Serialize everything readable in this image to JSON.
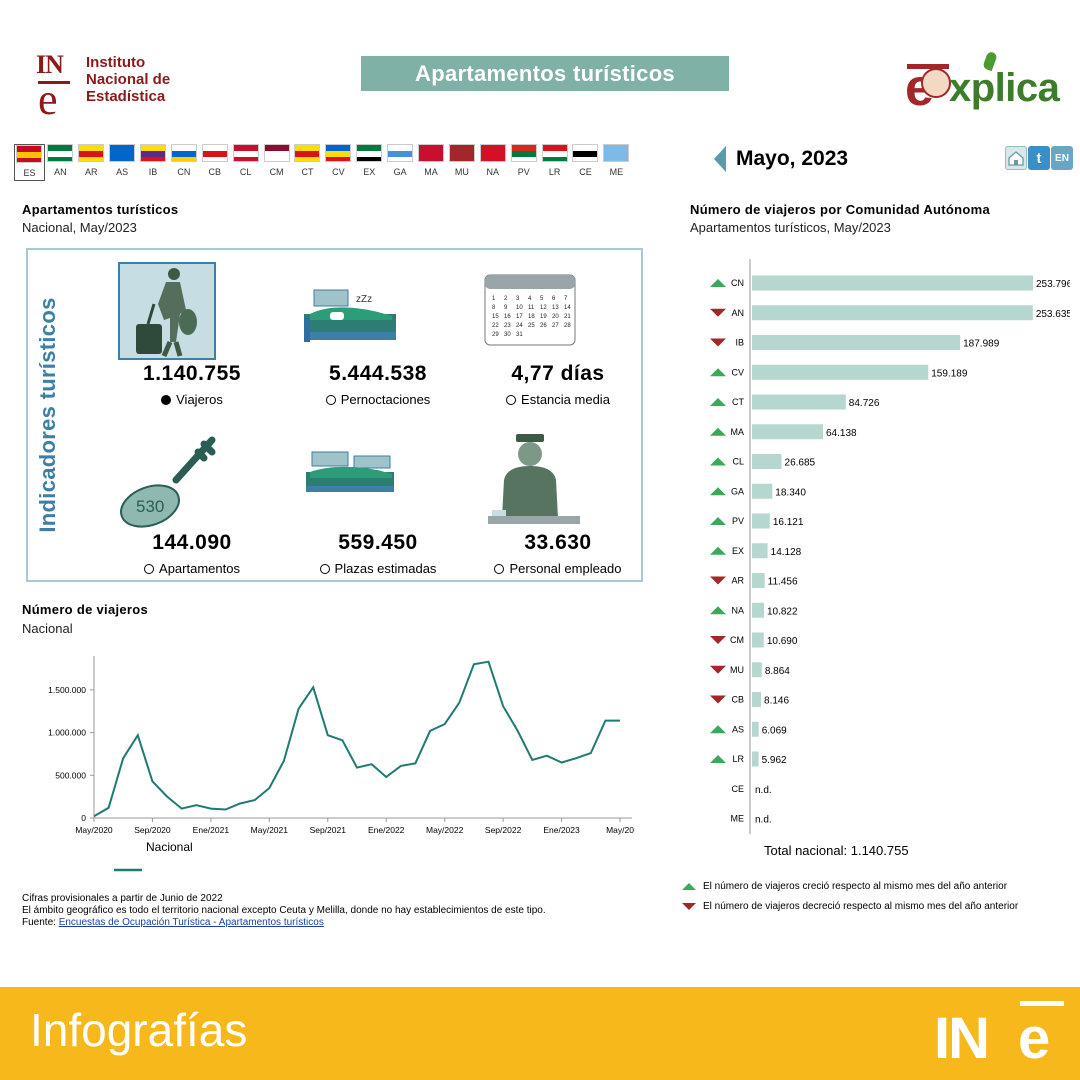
{
  "header": {
    "ine_logo_mark": "INe",
    "ine_name": [
      "Instituto",
      "Nacional de",
      "Estadística"
    ],
    "title": "Apartamentos turísticos",
    "explica_logo": "explica"
  },
  "flags": {
    "selected": "ES",
    "items": [
      {
        "code": "ES",
        "colors": [
          "#c60b1e",
          "#ffc400",
          "#c60b1e"
        ]
      },
      {
        "code": "AN",
        "colors": [
          "#007a3d",
          "#ffffff",
          "#007a3d"
        ]
      },
      {
        "code": "AR",
        "colors": [
          "#fcdd09",
          "#da121a",
          "#fcdd09"
        ]
      },
      {
        "code": "AS",
        "colors": [
          "#0066cc",
          "#0066cc",
          "#0066cc"
        ]
      },
      {
        "code": "IB",
        "colors": [
          "#fcdd09",
          "#5b2a86",
          "#da121a"
        ]
      },
      {
        "code": "CN",
        "colors": [
          "#ffffff",
          "#0066cc",
          "#ffcc00"
        ]
      },
      {
        "code": "CB",
        "colors": [
          "#ffffff",
          "#da121a",
          "#ffffff"
        ]
      },
      {
        "code": "CL",
        "colors": [
          "#c8102e",
          "#ffffff",
          "#c8102e"
        ]
      },
      {
        "code": "CM",
        "colors": [
          "#8b0d30",
          "#ffffff",
          "#ffffff"
        ]
      },
      {
        "code": "CT",
        "colors": [
          "#fcdd09",
          "#da121a",
          "#fcdd09"
        ]
      },
      {
        "code": "CV",
        "colors": [
          "#0066cc",
          "#fcdd09",
          "#da121a"
        ]
      },
      {
        "code": "EX",
        "colors": [
          "#007a3d",
          "#ffffff",
          "#000000"
        ]
      },
      {
        "code": "GA",
        "colors": [
          "#ffffff",
          "#4a90d9",
          "#ffffff"
        ]
      },
      {
        "code": "MA",
        "colors": [
          "#c8102e",
          "#c8102e",
          "#c8102e"
        ]
      },
      {
        "code": "MU",
        "colors": [
          "#a3262a",
          "#a3262a",
          "#a3262a"
        ]
      },
      {
        "code": "NA",
        "colors": [
          "#d50f25",
          "#d50f25",
          "#d50f25"
        ]
      },
      {
        "code": "PV",
        "colors": [
          "#d52b1e",
          "#007a3d",
          "#ffffff"
        ]
      },
      {
        "code": "LR",
        "colors": [
          "#da121a",
          "#ffffff",
          "#007a3d"
        ]
      },
      {
        "code": "CE",
        "colors": [
          "#ffffff",
          "#000000",
          "#ffffff"
        ]
      },
      {
        "code": "ME",
        "colors": [
          "#7fb9e6",
          "#7fb9e6",
          "#7fb9e6"
        ]
      }
    ]
  },
  "date_selector": {
    "label": "Mayo, 2023"
  },
  "toolbar": {
    "en_label": "EN",
    "twitter_glyph": "t"
  },
  "indicators_section": {
    "title": "Apartamentos turísticos",
    "subtitle": "Nacional, May/2023",
    "vertical_label": "Indicadores turísticos",
    "items": [
      {
        "value": "1.140.755",
        "label": "Viajeros",
        "selected": true
      },
      {
        "value": "5.444.538",
        "label": "Pernoctaciones",
        "selected": false
      },
      {
        "value": "4,77 días",
        "label": "Estancia media",
        "selected": false
      },
      {
        "value": "144.090",
        "label": "Apartamentos",
        "selected": false
      },
      {
        "value": "559.450",
        "label": "Plazas estimadas",
        "selected": false
      },
      {
        "value": "33.630",
        "label": "Personal empleado",
        "selected": false
      }
    ],
    "key_tag": "530",
    "calendar_days": [
      "1",
      "2",
      "3",
      "4",
      "5",
      "6",
      "7",
      "8",
      "9",
      "10",
      "11",
      "12",
      "13",
      "14",
      "15",
      "16",
      "17",
      "18",
      "19",
      "20",
      "21",
      "22",
      "23",
      "24",
      "25",
      "26",
      "27",
      "28",
      "29",
      "30",
      "31"
    ]
  },
  "line_section": {
    "title": "Número de viajeros",
    "subtitle": "Nacional"
  },
  "bar_section": {
    "title": "Número de viajeros por Comunidad Autónoma",
    "subtitle": "Apartamentos turísticos, May/2023",
    "total_label": "Total nacional: 1.140.755"
  },
  "legend": {
    "up": "El número de viajeros creció respecto al mismo mes del año anterior",
    "down": "El número de viajeros decreció respecto al mismo mes del año anterior",
    "up_color": "#3aa95c",
    "down_color": "#a3262a"
  },
  "notes": {
    "line1": "Cifras provisionales a partir de Junio de 2022",
    "line2": "El ámbito geográfico es todo el territorio nacional excepto Ceuta y Melilla, donde no hay establecimientos de este tipo.",
    "source_label": "Fuente:",
    "source_link": "Encuestas de Ocupación Turística - Apartamentos turísticos"
  },
  "footer": {
    "label": "Infografías",
    "logo": "INE"
  },
  "chart_data": [
    {
      "type": "line",
      "title": "Número de viajeros",
      "subtitle": "Nacional",
      "series": [
        {
          "name": "Nacional",
          "color": "#1f7a72",
          "values": [
            20000,
            120000,
            700000,
            970000,
            430000,
            250000,
            110000,
            150000,
            110000,
            100000,
            170000,
            210000,
            350000,
            670000,
            1280000,
            1530000,
            970000,
            910000,
            590000,
            630000,
            480000,
            610000,
            640000,
            1020000,
            1100000,
            1350000,
            1800000,
            1830000,
            1310000,
            1020000,
            680000,
            730000,
            650000,
            700000,
            760000,
            1140000,
            1140000
          ]
        }
      ],
      "x": [
        "May/2020",
        "Jun/2020",
        "Jul/2020",
        "Ago/2020",
        "Sep/2020",
        "Oct/2020",
        "Nov/2020",
        "Dic/2020",
        "Ene/2021",
        "Feb/2021",
        "Mar/2021",
        "Abr/2021",
        "May/2021",
        "Jun/2021",
        "Jul/2021",
        "Ago/2021",
        "Sep/2021",
        "Oct/2021",
        "Nov/2021",
        "Dic/2021",
        "Ene/2022",
        "Feb/2022",
        "Mar/2022",
        "Abr/2022",
        "May/2022",
        "Jun/2022",
        "Jul/2022",
        "Ago/2022",
        "Sep/2022",
        "Oct/2022",
        "Nov/2022",
        "Dic/2022",
        "Ene/2023",
        "Feb/2023",
        "Mar/2023",
        "Abr/2023",
        "May/2023"
      ],
      "tick_labels": [
        "May/2020",
        "Sep/2020",
        "Ene/2021",
        "May/2021",
        "Sep/2021",
        "Ene/2022",
        "May/2022",
        "Sep/2022",
        "Ene/2023",
        "May/20"
      ],
      "tick_indices": [
        0,
        4,
        8,
        12,
        16,
        20,
        24,
        28,
        32,
        36
      ],
      "y_ticks": [
        0,
        500000,
        1000000,
        1500000
      ],
      "y_tick_labels": [
        "0",
        "500.000",
        "1.000.000",
        "1.500.000"
      ],
      "ylim": [
        0,
        1850000
      ],
      "legend": "bottom-left",
      "grid": false
    },
    {
      "type": "bar",
      "orientation": "horizontal",
      "title": "Número de viajeros por Comunidad Autónoma",
      "subtitle": "Apartamentos turísticos, May/2023",
      "bar_color": "#b6d7cf",
      "categories": [
        "CN",
        "AN",
        "IB",
        "CV",
        "CT",
        "MA",
        "CL",
        "GA",
        "PV",
        "EX",
        "AR",
        "NA",
        "CM",
        "MU",
        "CB",
        "AS",
        "LR",
        "CE",
        "ME"
      ],
      "values": [
        253796,
        253635,
        187989,
        159189,
        84726,
        64138,
        26685,
        18340,
        16121,
        14128,
        11456,
        10822,
        10690,
        8864,
        8146,
        6069,
        5962,
        null,
        null
      ],
      "value_labels": [
        "253.796",
        "253.635",
        "187.989",
        "159.189",
        "84.726",
        "64.138",
        "26.685",
        "18.340",
        "16.121",
        "14.128",
        "11.456",
        "10.822",
        "10.690",
        "8.864",
        "8.146",
        "6.069",
        "5.962",
        "n.d.",
        "n.d."
      ],
      "trend": [
        "up",
        "down",
        "down",
        "up",
        "up",
        "up",
        "up",
        "up",
        "up",
        "up",
        "down",
        "up",
        "down",
        "down",
        "down",
        "up",
        "up",
        null,
        null
      ],
      "xlim": [
        0,
        253796
      ]
    }
  ]
}
